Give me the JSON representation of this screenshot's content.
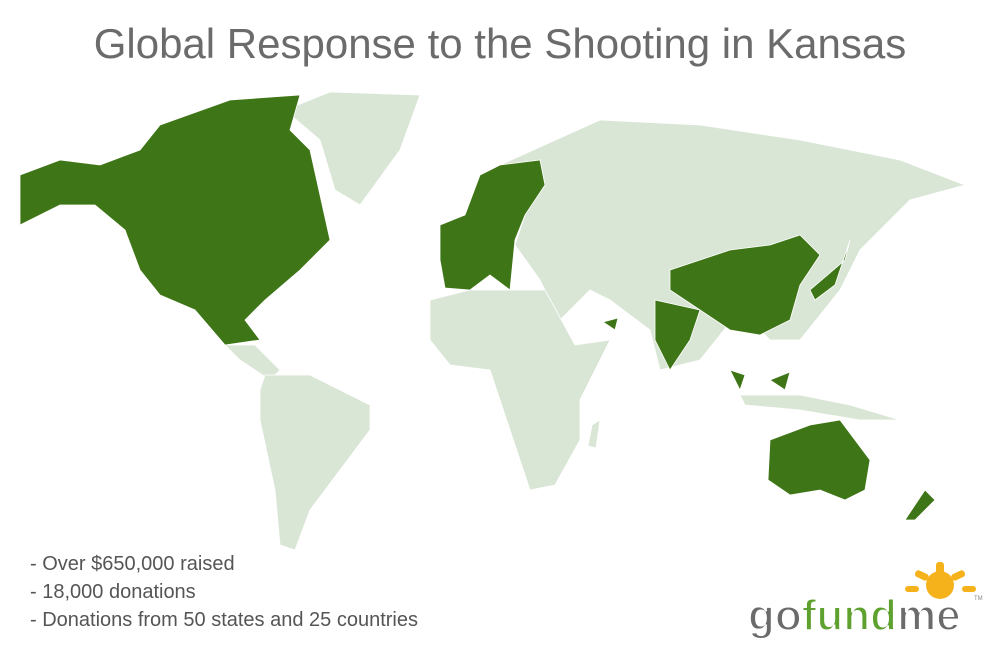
{
  "title": "Global Response to the Shooting in Kansas",
  "notes": [
    "- Over $650,000 raised",
    "- 18,000 donations",
    "- Donations from 50 states and 25 countries"
  ],
  "logo": {
    "parts": [
      "go",
      "fund",
      "me"
    ],
    "mark": "TM"
  }
}
